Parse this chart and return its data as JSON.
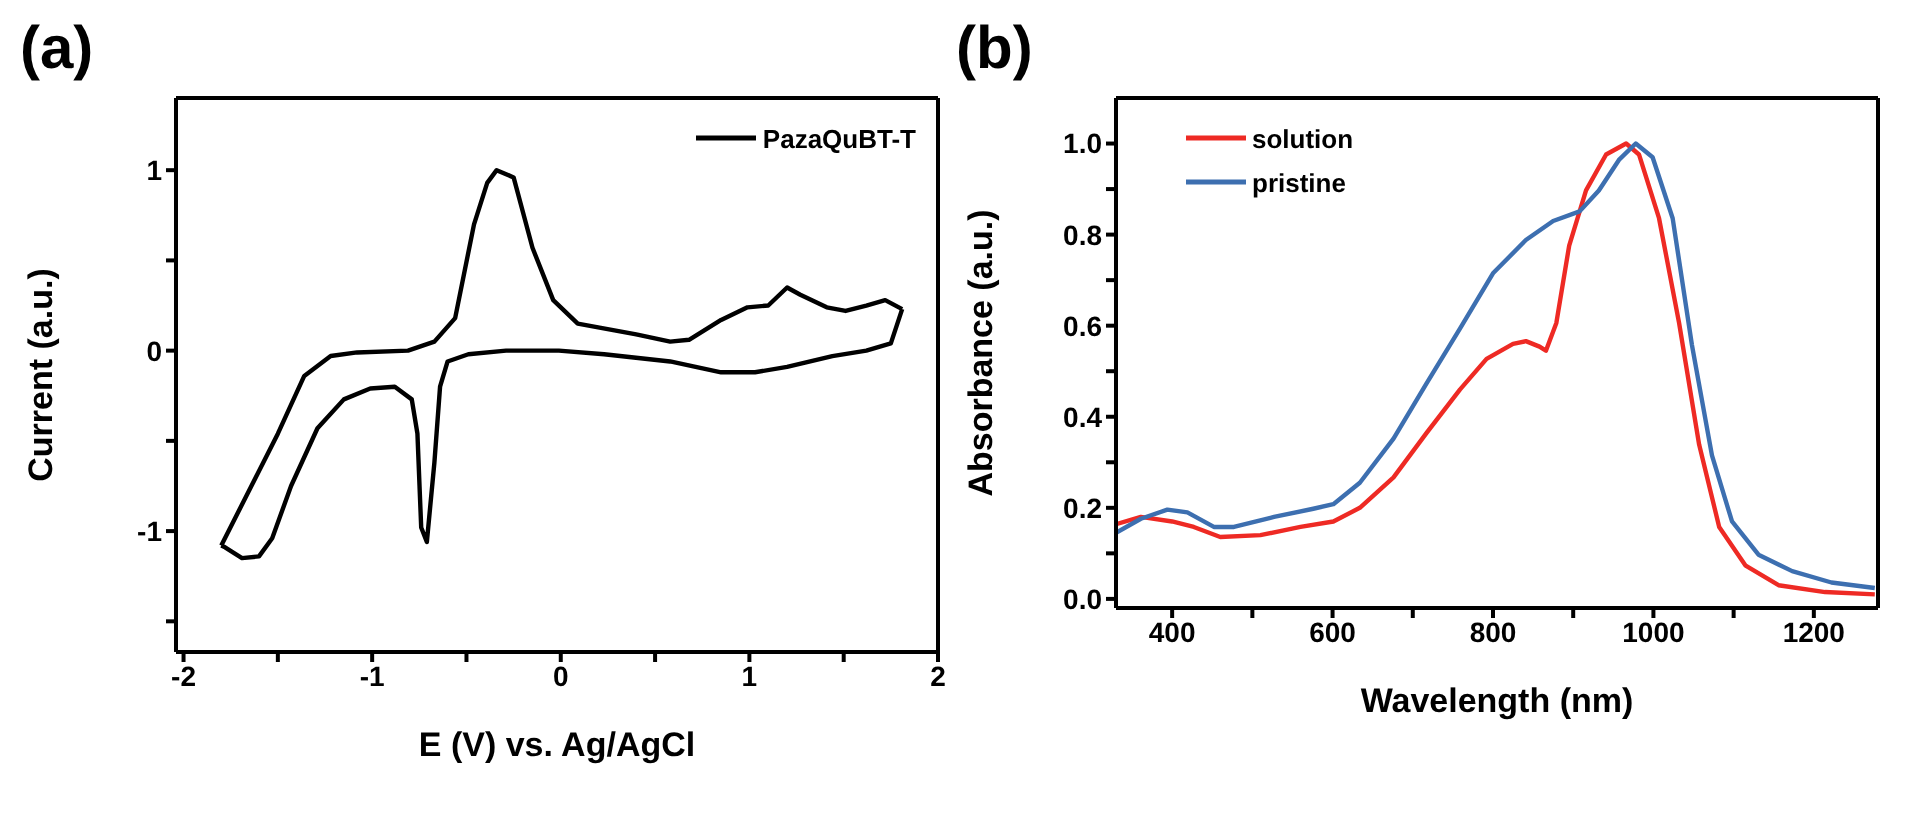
{
  "chart_data": [
    {
      "type": "line",
      "title": "(a)",
      "xlabel": "E (V) vs. Ag/AgCl",
      "ylabel": "Current (a.u.)",
      "xlim": [
        -2.04,
        2
      ],
      "ylim": [
        -1.67,
        1.4
      ],
      "xticks": [
        -2,
        {
          "value": -1.5,
          "label": null
        },
        -1,
        {
          "value": -0.5,
          "label": null
        },
        0,
        {
          "value": 0.5,
          "label": null
        },
        1,
        {
          "value": 1.5,
          "label": null
        },
        2
      ],
      "yticks": [
        {
          "value": -1.5,
          "label": null
        },
        -1,
        {
          "value": -0.5,
          "label": null
        },
        0,
        {
          "value": 0.5,
          "label": null
        },
        1
      ],
      "grid": false,
      "legend": "top right",
      "marker": "none",
      "line_style": "solid",
      "series": [
        {
          "name": "PazaQuBT-T",
          "color": "#000000",
          "x": [
            -1.8,
            -1.5,
            -1.36,
            -1.22,
            -1.08,
            -0.81,
            -0.67,
            -0.56,
            -0.46,
            -0.39,
            -0.34,
            -0.25,
            -0.15,
            -0.04,
            0.09,
            0.4,
            0.58,
            0.68,
            0.85,
            0.99,
            1.1,
            1.2,
            1.27,
            1.41,
            1.51,
            1.62,
            1.72,
            1.81
          ],
          "values": [
            -1.08,
            -0.46,
            -0.14,
            -0.03,
            -0.01,
            0.0,
            0.05,
            0.18,
            0.7,
            0.93,
            1.0,
            0.96,
            0.57,
            0.28,
            0.15,
            0.09,
            0.05,
            0.06,
            0.17,
            0.24,
            0.25,
            0.35,
            0.31,
            0.24,
            0.22,
            0.25,
            0.28,
            0.23
          ]
        },
        {
          "color": "#000000",
          "x": [
            -1.8,
            -1.78,
            -1.69,
            -1.6,
            -1.53,
            -1.43,
            -1.29,
            -1.15,
            -1.01,
            -0.88,
            -0.79,
            -0.76,
            -0.74,
            -0.71,
            -0.67,
            -0.64,
            -0.6,
            -0.49,
            -0.29,
            -0.01,
            0.23,
            0.58,
            0.85,
            1.03,
            1.2,
            1.44,
            1.62,
            1.75,
            1.81
          ],
          "values": [
            -1.08,
            -1.09,
            -1.15,
            -1.14,
            -1.04,
            -0.75,
            -0.43,
            -0.27,
            -0.21,
            -0.2,
            -0.27,
            -0.46,
            -0.98,
            -1.06,
            -0.62,
            -0.2,
            -0.06,
            -0.02,
            0.0,
            0.0,
            -0.02,
            -0.06,
            -0.12,
            -0.12,
            -0.09,
            -0.03,
            0.0,
            0.04,
            0.23
          ]
        }
      ]
    },
    {
      "type": "line",
      "title": "(b)",
      "xlabel": "Wavelength (nm)",
      "ylabel": "Absorbance (a.u.)",
      "xlim": [
        330,
        1280
      ],
      "ylim": [
        -0.02,
        1.1
      ],
      "xticks": [
        400,
        {
          "value": 500,
          "label": null
        },
        600,
        {
          "value": 700,
          "label": null
        },
        800,
        {
          "value": 900,
          "label": null
        },
        1000,
        {
          "value": 1100,
          "label": null
        },
        1200
      ],
      "yticks": [
        "0.0",
        {
          "value": 0.1,
          "label": null
        },
        {
          "value": 0.2,
          "label": "0.2"
        },
        {
          "value": 0.3,
          "label": null
        },
        {
          "value": 0.4,
          "label": "0.4"
        },
        {
          "value": 0.5,
          "label": null
        },
        {
          "value": 0.6,
          "label": "0.6"
        },
        {
          "value": 0.7,
          "label": null
        },
        {
          "value": 0.8,
          "label": "0.8"
        },
        {
          "value": 0.9,
          "label": null
        },
        {
          "value": 1.0,
          "label": "1.0"
        }
      ],
      "grid": false,
      "legend": "top left",
      "marker": "none",
      "line_style": "solid",
      "series": [
        {
          "name": "solution",
          "color": "#ee2a24",
          "x": [
            330,
            361,
            400,
            427,
            460,
            510,
            560,
            601,
            634,
            676,
            717,
            759,
            792,
            825,
            841,
            858,
            866,
            879,
            895,
            916,
            941,
            966,
            982,
            1007,
            1032,
            1057,
            1082,
            1115,
            1156,
            1214,
            1276
          ],
          "values": [
            0.164,
            0.18,
            0.17,
            0.158,
            0.136,
            0.14,
            0.158,
            0.17,
            0.2,
            0.267,
            0.364,
            0.46,
            0.527,
            0.56,
            0.566,
            0.554,
            0.545,
            0.606,
            0.776,
            0.897,
            0.976,
            1.0,
            0.976,
            0.836,
            0.606,
            0.339,
            0.158,
            0.073,
            0.03,
            0.015,
            0.01
          ]
        },
        {
          "name": "pristine",
          "color": "#3d6fb0",
          "x": [
            330,
            361,
            394,
            419,
            452,
            477,
            527,
            576,
            601,
            634,
            676,
            717,
            759,
            800,
            841,
            875,
            908,
            932,
            957,
            978,
            999,
            1024,
            1048,
            1073,
            1098,
            1131,
            1173,
            1222,
            1276
          ],
          "values": [
            0.145,
            0.176,
            0.196,
            0.19,
            0.158,
            0.158,
            0.18,
            0.198,
            0.208,
            0.255,
            0.352,
            0.473,
            0.594,
            0.715,
            0.788,
            0.83,
            0.851,
            0.897,
            0.964,
            1.0,
            0.97,
            0.836,
            0.558,
            0.315,
            0.17,
            0.097,
            0.061,
            0.036,
            0.024
          ]
        }
      ]
    }
  ]
}
